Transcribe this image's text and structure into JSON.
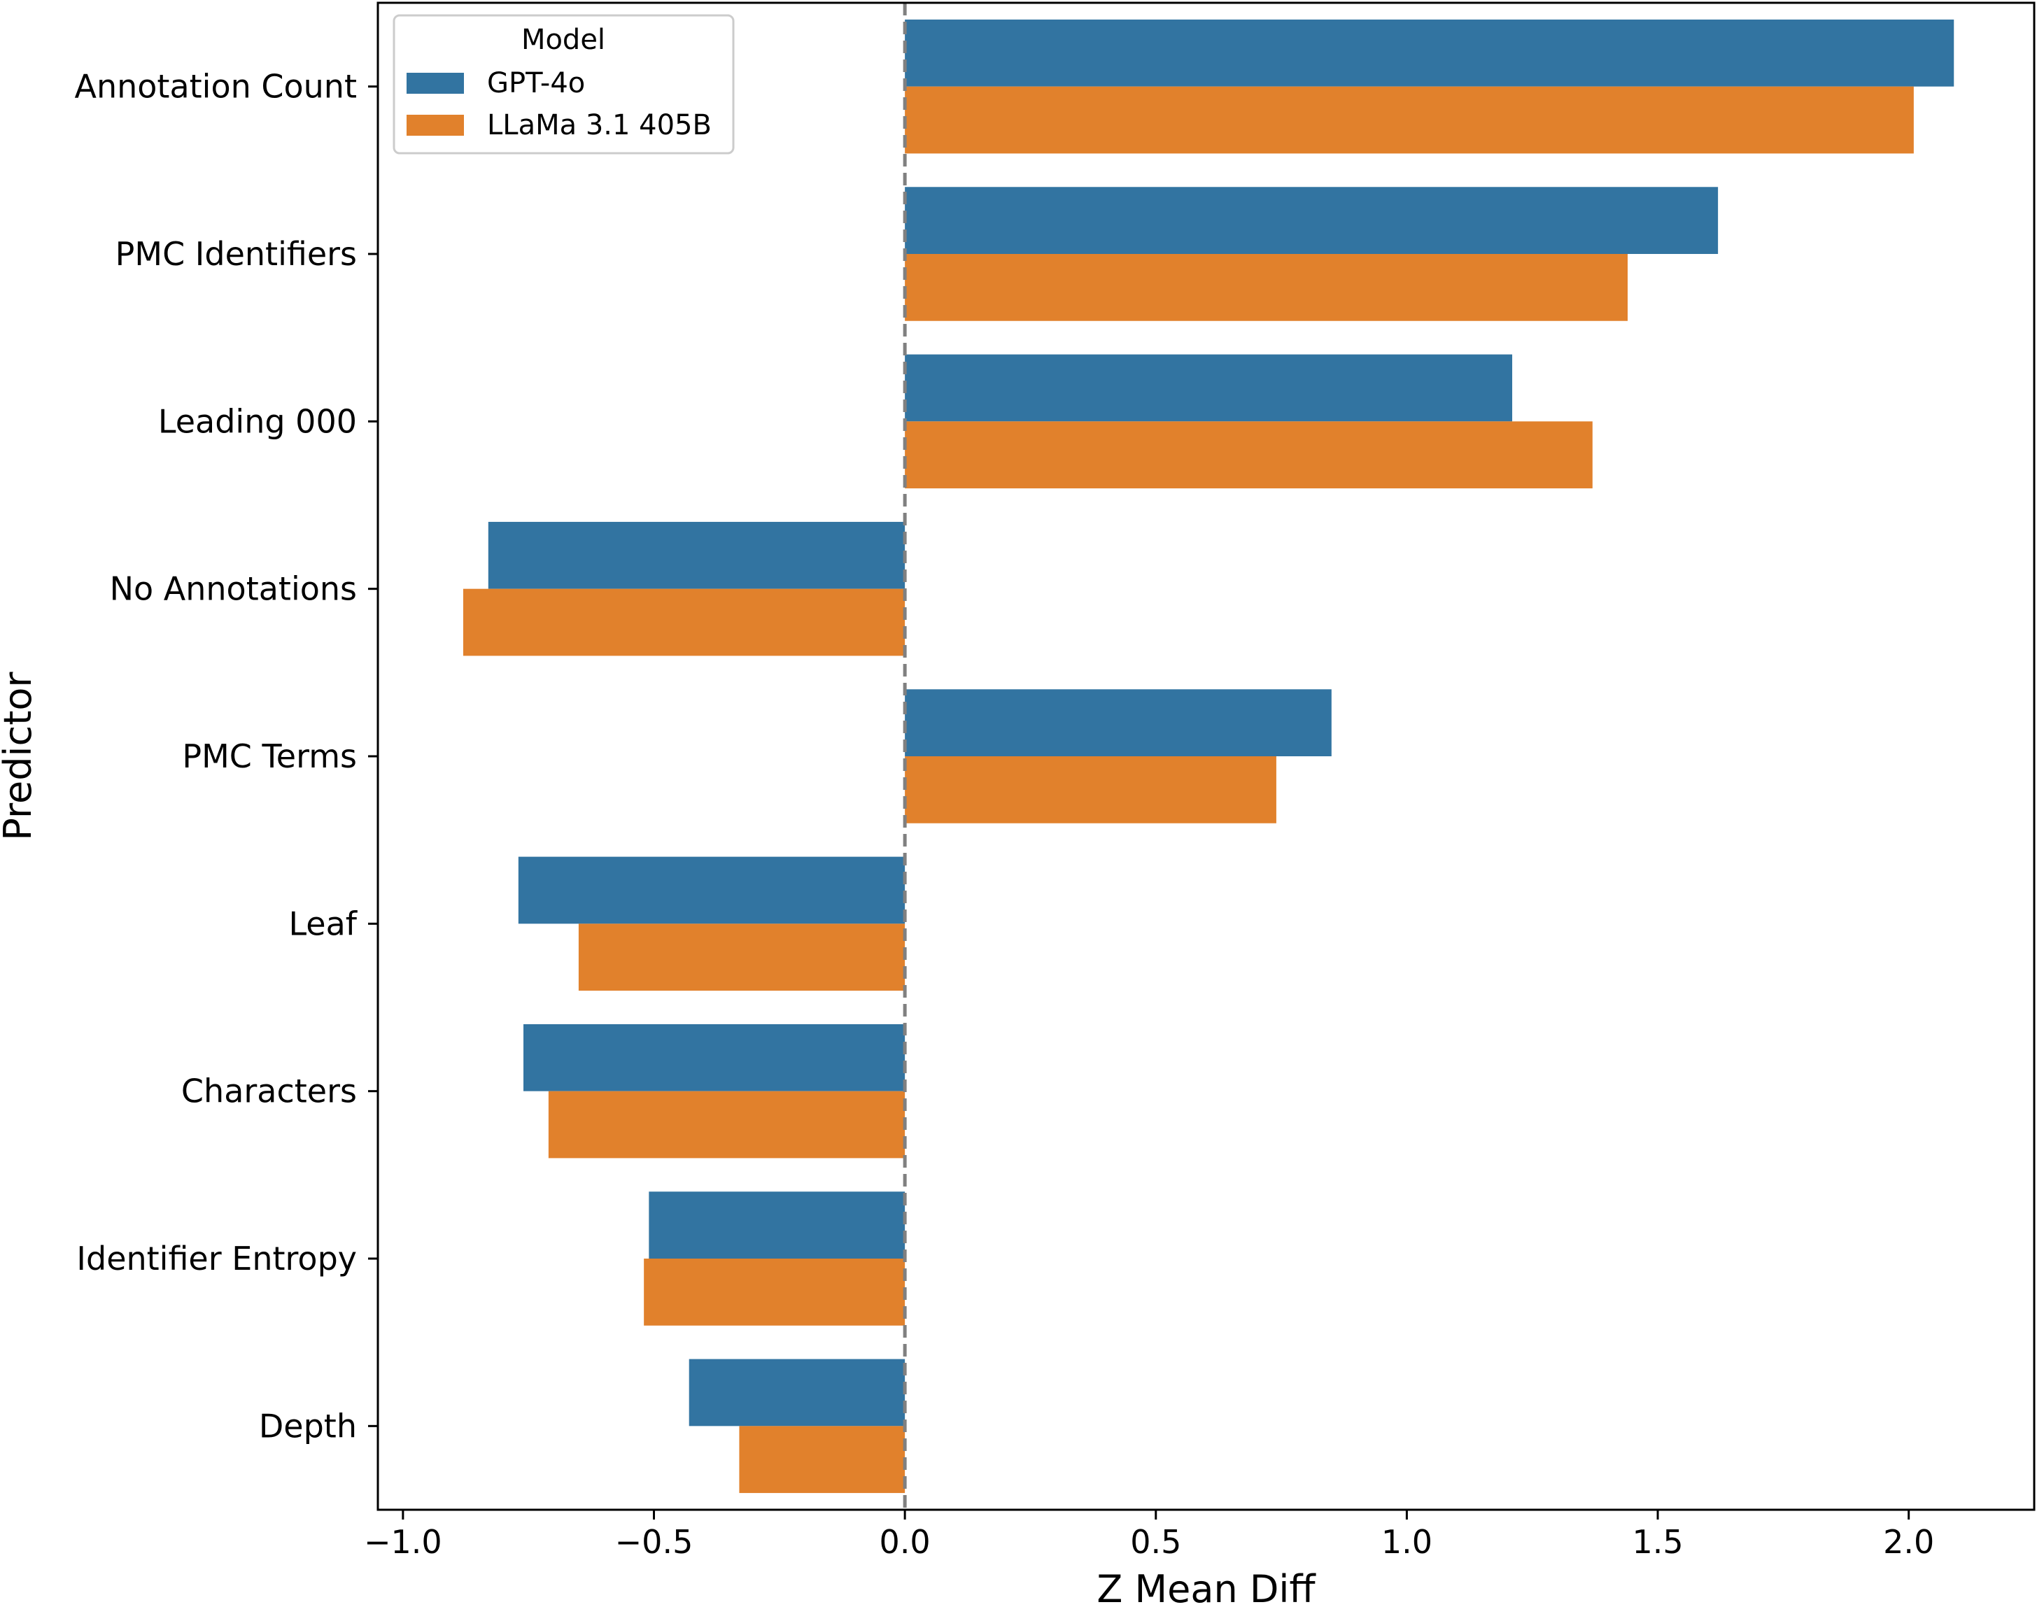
{
  "chart_data": {
    "type": "bar",
    "orientation": "horizontal",
    "title": "",
    "xlabel": "Z Mean Diff",
    "ylabel": "Predictor",
    "xlim": [
      -1.05,
      2.25
    ],
    "xticks": [
      -1.0,
      -0.5,
      0.0,
      0.5,
      1.0,
      1.5,
      2.0
    ],
    "xtick_labels": [
      "−1.0",
      "−0.5",
      "0.0",
      "0.5",
      "1.0",
      "1.5",
      "2.0"
    ],
    "grid": false,
    "reference_line": {
      "x": 0,
      "style": "dashed",
      "color": "#808080"
    },
    "categories": [
      "Annotation Count",
      "PMC Identifiers",
      "Leading 000",
      "No Annotations",
      "PMC Terms",
      "Leaf",
      "Characters",
      "Identifier Entropy",
      "Depth"
    ],
    "series": [
      {
        "name": "GPT-4o",
        "color": "#3274a1",
        "values": [
          2.09,
          1.62,
          1.21,
          -0.83,
          0.85,
          -0.77,
          -0.76,
          -0.51,
          -0.43
        ]
      },
      {
        "name": "LLaMa 3.1 405B",
        "color": "#e1812c",
        "values": [
          2.01,
          1.44,
          1.37,
          -0.88,
          0.74,
          -0.65,
          -0.71,
          -0.52,
          -0.33
        ]
      }
    ],
    "legend": {
      "title": "Model",
      "position": "top-left"
    }
  }
}
